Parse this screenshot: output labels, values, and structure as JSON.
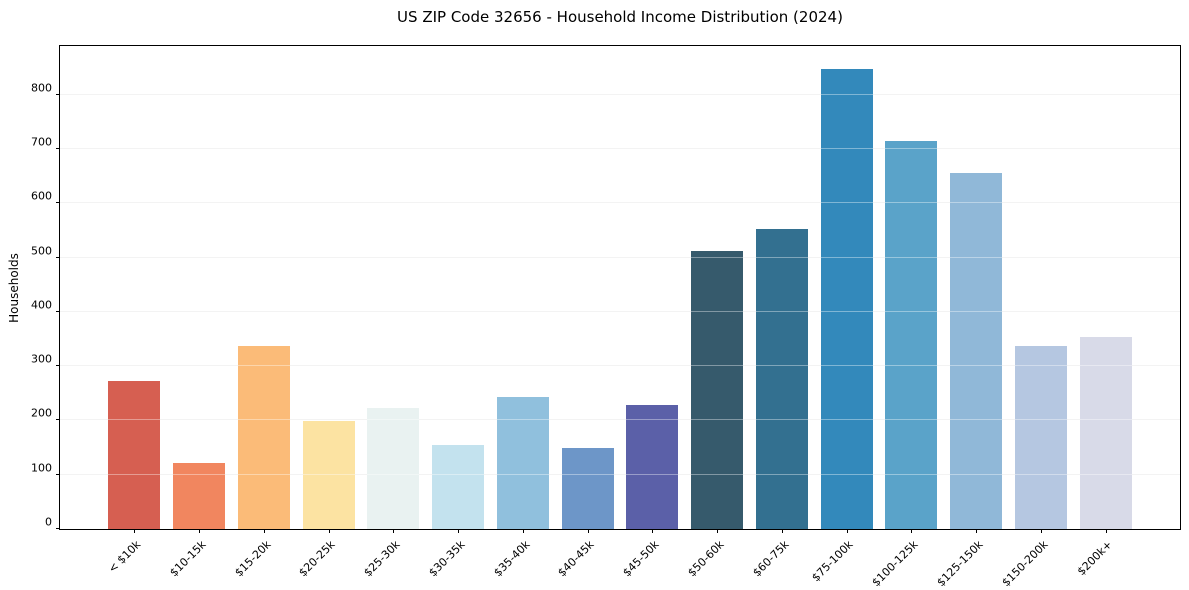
{
  "figure": {
    "title": "US ZIP Code 32656 - Household Income Distribution (2024)"
  },
  "chart_data": {
    "type": "bar",
    "title": "US ZIP Code 32656 - Household Income Distribution (2024)",
    "xlabel": "",
    "ylabel": "Households",
    "categories": [
      "< $10k",
      "$10-15k",
      "$15-20k",
      "$20-25k",
      "$25-30k",
      "$30-35k",
      "$35-40k",
      "$40-45k",
      "$45-50k",
      "$50-60k",
      "$60-75k",
      "$75-100k",
      "$100-125k",
      "$125-150k",
      "$150-200k",
      "$200k+"
    ],
    "values": [
      273,
      122,
      338,
      200,
      223,
      155,
      243,
      150,
      228,
      513,
      552,
      847,
      715,
      656,
      338,
      353
    ],
    "bar_colors": [
      "#d65f51",
      "#f1865f",
      "#fbbb78",
      "#fce3a2",
      "#e9f2f1",
      "#c3e2ee",
      "#90c0dd",
      "#6d96c8",
      "#5b60a8",
      "#365a6c",
      "#337090",
      "#3389bb",
      "#5aa3c9",
      "#90b8d8",
      "#b5c7e1",
      "#d8dae8"
    ],
    "ylim": [
      0,
      890
    ],
    "yticks": [
      0,
      100,
      200,
      300,
      400,
      500,
      600,
      700,
      800
    ],
    "grid": "horizontal",
    "gridline_color": "#ececec",
    "legend": "none",
    "background": "#ffffff",
    "axis_color": "#000000",
    "x_tick_rotation_deg": 45
  }
}
